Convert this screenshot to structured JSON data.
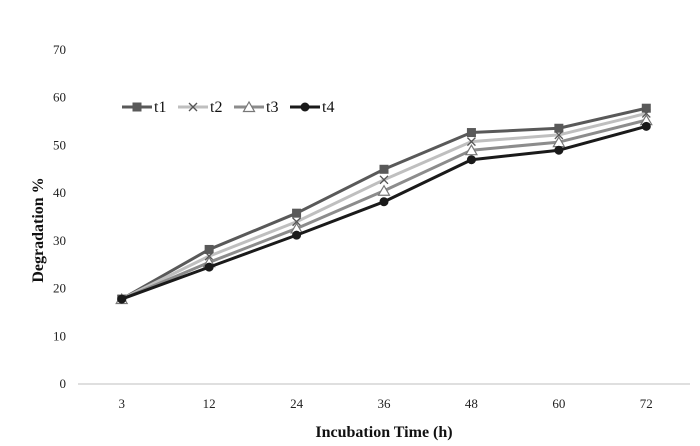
{
  "chart_data": {
    "type": "line",
    "title": "",
    "xlabel": "Incubation Time (h)",
    "ylabel": "Degradation %",
    "categories": [
      "3",
      "12",
      "24",
      "36",
      "48",
      "60",
      "72"
    ],
    "ylim": [
      0,
      70
    ],
    "yticks": [
      "0",
      "10",
      "20",
      "30",
      "40",
      "50",
      "60",
      "70"
    ],
    "grid": false,
    "legend_position": "top-left",
    "series": [
      {
        "name": "t1",
        "values": [
          17.8,
          28.2,
          35.8,
          45.0,
          52.7,
          53.6,
          57.8
        ],
        "color": "#595959",
        "marker": "square"
      },
      {
        "name": "t2",
        "values": [
          17.8,
          26.8,
          34.0,
          42.8,
          50.8,
          52.2,
          56.7
        ],
        "color": "#bfbfbf",
        "marker": "x"
      },
      {
        "name": "t3",
        "values": [
          17.8,
          25.5,
          32.6,
          40.5,
          49.0,
          50.7,
          55.3
        ],
        "color": "#8c8c8c",
        "marker": "triangle"
      },
      {
        "name": "t4",
        "values": [
          17.8,
          24.5,
          31.2,
          38.2,
          47.0,
          49.0,
          54.0
        ],
        "color": "#1a1a1a",
        "marker": "circle"
      }
    ]
  }
}
